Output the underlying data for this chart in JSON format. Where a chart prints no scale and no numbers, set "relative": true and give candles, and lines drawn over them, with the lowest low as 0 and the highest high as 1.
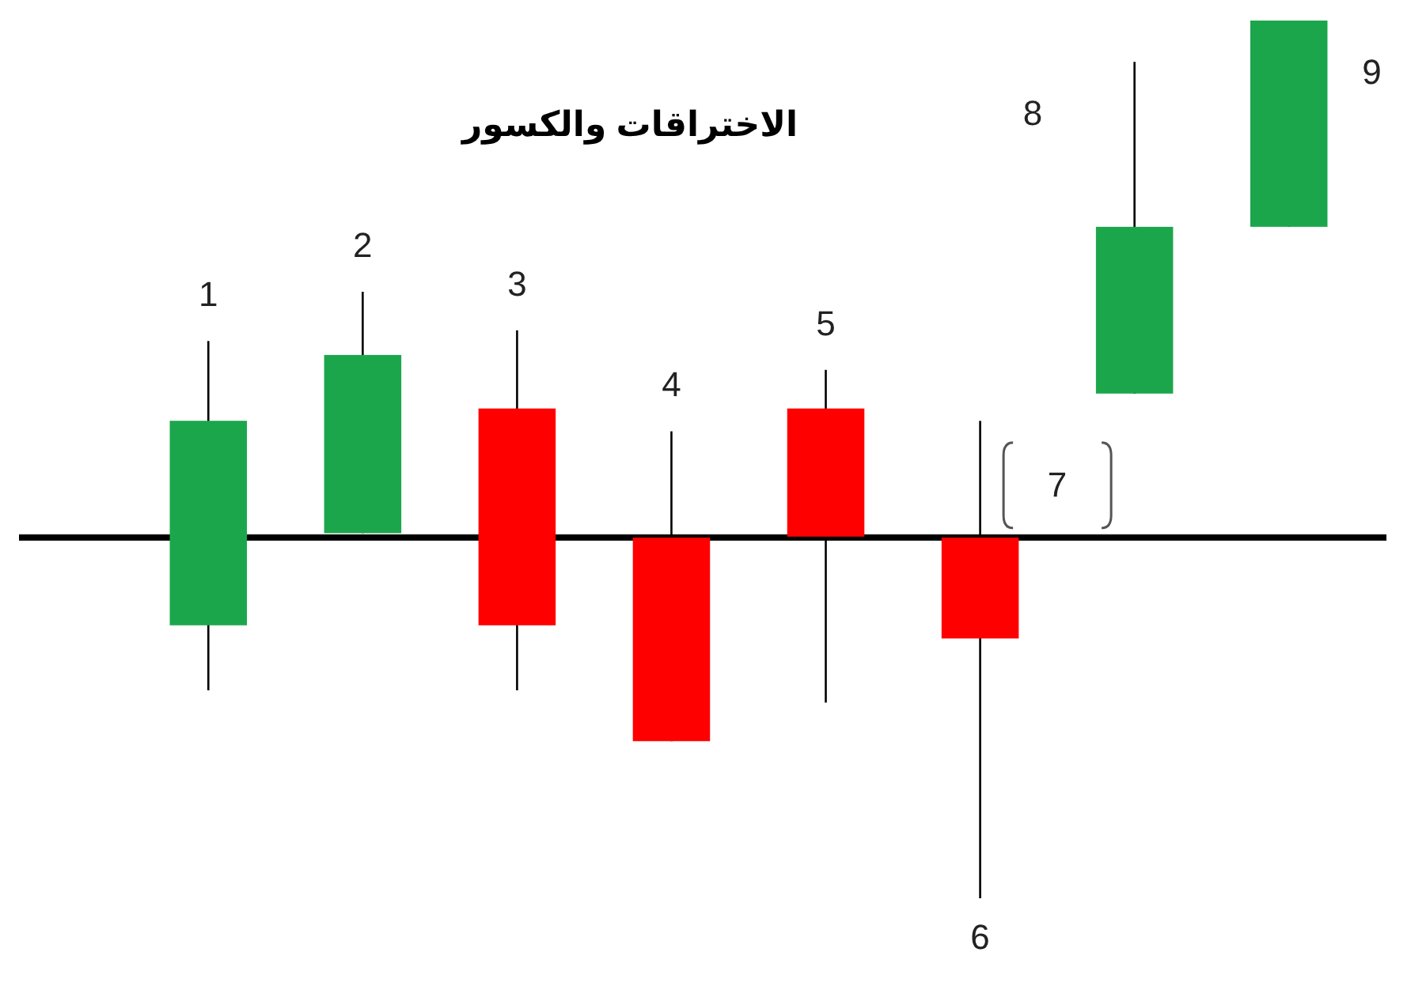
{
  "chart_data": {
    "type": "candlestick",
    "title": "الاختراقات والكسور",
    "relative": true,
    "categories": [
      null,
      null,
      null,
      null,
      null,
      null,
      null,
      null
    ],
    "ohlc": [
      [
        0.311,
        0.635,
        0.237,
        0.544
      ],
      [
        0.416,
        0.691,
        0.416,
        0.619
      ],
      [
        0.558,
        0.647,
        0.237,
        0.311
      ],
      [
        0.411,
        0.532,
        0.179,
        0.179
      ],
      [
        0.558,
        0.602,
        0.223,
        0.412
      ],
      [
        0.411,
        0.544,
        0,
        0.296
      ],
      [
        0.575,
        0.953,
        0.575,
        0.765
      ],
      [
        0.765,
        1,
        0.765,
        1
      ]
    ],
    "colors": [
      "#1ca64c",
      "#1ca64c",
      "#ff0000",
      "#ff0000",
      "#ff0000",
      "#ff0000",
      "#1ca64c",
      "#1ca64c"
    ],
    "annotations": [
      "1",
      "2",
      "3",
      "4",
      "5",
      "6",
      "7",
      "8",
      "9"
    ],
    "ref_lines": [
      {
        "axis": "y",
        "value": 0.411,
        "color": "#000000"
      }
    ]
  }
}
